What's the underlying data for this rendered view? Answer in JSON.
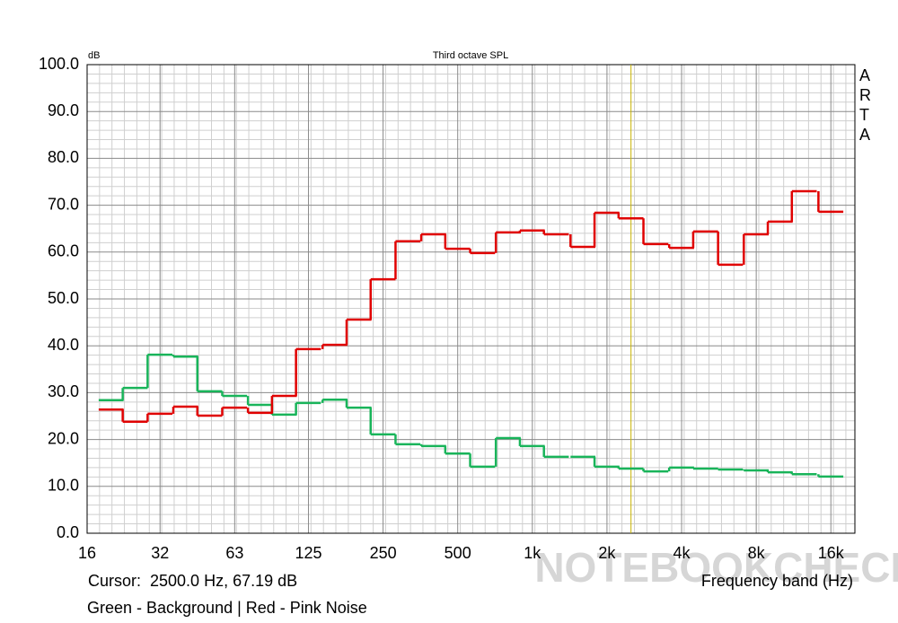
{
  "chart_data": {
    "type": "step",
    "title": "Third octave SPL",
    "y_unit": "dB",
    "x_label": "Frequency band (Hz)",
    "side_label": "ARTA",
    "cursor": {
      "x": 2500,
      "label": "Cursor:  2500.0 Hz, 67.19 dB"
    },
    "legend_text": "Green - Background | Red - Pink Noise",
    "watermark": "NOTEBOOKCHECK",
    "xscale": "log",
    "grid": true,
    "minor_grid": true,
    "xlim": [
      16,
      20000
    ],
    "ylim": [
      0,
      100
    ],
    "xticks": [
      16,
      {
        "value": 31.5,
        "label": "32"
      },
      63,
      125,
      250,
      500,
      {
        "value": 1000,
        "label": "1k"
      },
      {
        "value": 2000,
        "label": "2k"
      },
      {
        "value": 4000,
        "label": "4k"
      },
      {
        "value": 8000,
        "label": "8k"
      },
      {
        "value": 16000,
        "label": "16k"
      }
    ],
    "yticks": [
      {
        "value": 0,
        "label": "0.0"
      },
      {
        "value": 10,
        "label": "10.0"
      },
      {
        "value": 20,
        "label": "20.0"
      },
      {
        "value": 30,
        "label": "30.0"
      },
      {
        "value": 40,
        "label": "40.0"
      },
      {
        "value": 50,
        "label": "50.0"
      },
      {
        "value": 60,
        "label": "60.0"
      },
      {
        "value": 70,
        "label": "70.0"
      },
      {
        "value": 80,
        "label": "80.0"
      },
      {
        "value": 90,
        "label": "90.0"
      },
      {
        "value": 100,
        "label": "100.0"
      }
    ],
    "x": [
      20,
      25,
      31.5,
      40,
      50,
      63,
      80,
      100,
      125,
      160,
      200,
      250,
      315,
      400,
      500,
      630,
      800,
      1000,
      1250,
      1600,
      2000,
      2500,
      3150,
      4000,
      5000,
      6300,
      8000,
      10000,
      12500,
      16000
    ],
    "series": [
      {
        "color": "#19b45a",
        "values": [
          28.4,
          31.0,
          38.1,
          37.7,
          30.3,
          29.3,
          27.4,
          25.3,
          27.8,
          28.5,
          26.8,
          21.1,
          19.0,
          18.6,
          17.0,
          14.2,
          20.3,
          18.6,
          16.3,
          16.3,
          14.2,
          13.8,
          13.2,
          14.0,
          13.8,
          13.6,
          13.4,
          13.0,
          12.6,
          12.1
        ]
      },
      {
        "color": "#e00000",
        "values": [
          26.4,
          23.8,
          25.5,
          27.0,
          25.1,
          26.8,
          25.7,
          29.3,
          39.3,
          40.2,
          45.6,
          54.2,
          62.3,
          63.8,
          60.7,
          59.8,
          64.2,
          64.6,
          63.8,
          61.1,
          68.4,
          67.2,
          61.7,
          60.9,
          64.4,
          57.3,
          63.8,
          66.5,
          73.0,
          68.6
        ]
      }
    ]
  }
}
